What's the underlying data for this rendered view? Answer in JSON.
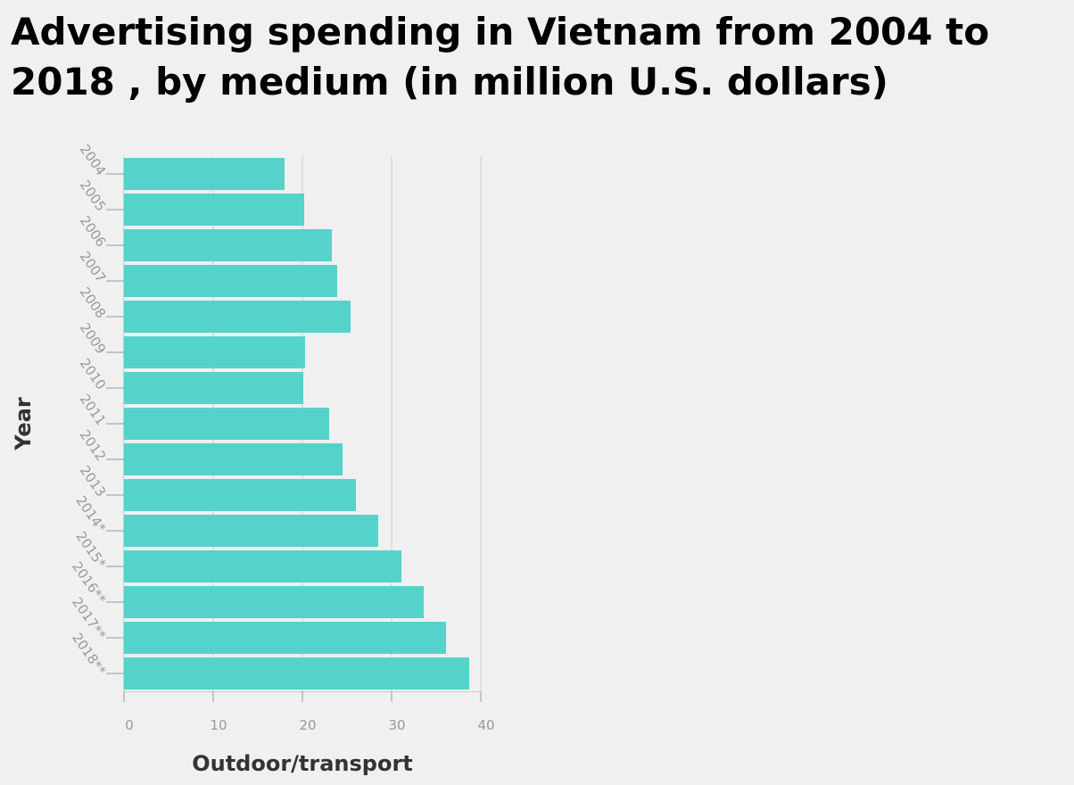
{
  "chart_data": {
    "type": "bar",
    "orientation": "horizontal",
    "title": "Advertising spending in Vietnam from 2004 to 2018 , by medium (in million U.S. dollars)",
    "xlabel": "Outdoor/transport",
    "ylabel": "Year",
    "categories": [
      "2004",
      "2005",
      "2006",
      "2007",
      "2008",
      "2009",
      "2010",
      "2011",
      "2012",
      "2013",
      "2014*",
      "2015*",
      "2016**",
      "2017**",
      "2018**"
    ],
    "values": [
      18,
      20.2,
      23.3,
      23.9,
      25.4,
      20.3,
      20.1,
      23,
      24.5,
      26,
      28.5,
      31.1,
      33.6,
      36.1,
      38.7
    ],
    "xlim": [
      0,
      40
    ],
    "xticks": [
      0,
      10,
      20,
      30,
      40
    ],
    "grid": true,
    "bar_color": "#55d3cb",
    "grid_color": "#cccccc"
  }
}
